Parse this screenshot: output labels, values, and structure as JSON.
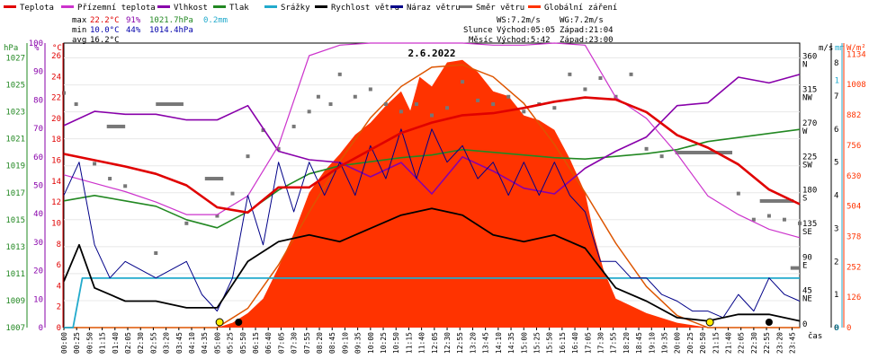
{
  "chart_data": {
    "type": "line",
    "title": "2.6.2022",
    "legend": [
      {
        "label": "Teplota",
        "color": "#e00000"
      },
      {
        "label": "Přízemní teplota",
        "color": "#cc33cc"
      },
      {
        "label": "Vlhkost",
        "color": "#8800aa"
      },
      {
        "label": "Tlak",
        "color": "#228822"
      },
      {
        "label": "Srážky",
        "color": "#22aacc"
      },
      {
        "label": "Rychlost větru",
        "color": "#000000"
      },
      {
        "label": "Náraz větru",
        "color": "#000088"
      },
      {
        "label": "Směr větru",
        "color": "#777777"
      },
      {
        "label": "Globální záření",
        "color": "#ff3300"
      }
    ],
    "stats": {
      "max": {
        "label": "max",
        "temp": "22.2°C",
        "hum": "91%",
        "press": "1021.7hPa",
        "rain": "0.2mm"
      },
      "min": {
        "label": "min",
        "temp": "10.0°C",
        "hum": "44%",
        "press": "1014.4hPa"
      },
      "avg": {
        "label": "avg",
        "temp": "16.2°C"
      }
    },
    "wind_info": {
      "ws": "WS:7.2m/s",
      "wg": "WG:7.2m/s"
    },
    "sun": {
      "label": "Slunce",
      "rise": "Východ:05:05",
      "set": "Západ:21:04"
    },
    "moon": {
      "label": "Měsíc",
      "rise": "Východ:5:42",
      "set": "Západ:23:00"
    },
    "axis_units": {
      "hpa": "hPa",
      "pct": "%",
      "temp": "°C",
      "ms": "m/s",
      "mm": "mm",
      "wm2": "W/m²",
      "time": "čas"
    },
    "left_axes": {
      "hpa": [
        "1027",
        "1025",
        "1023",
        "1021",
        "1019",
        "1017",
        "1015",
        "1013",
        "1011",
        "1009",
        "1007"
      ],
      "pct": [
        "100",
        "90",
        "80",
        "70",
        "60",
        "50",
        "40",
        "30",
        "20",
        "10",
        "0"
      ],
      "temp": [
        "26",
        "24",
        "22",
        "20",
        "18",
        "16",
        "14",
        "12",
        "10",
        "8",
        "6",
        "4",
        "2",
        "0"
      ]
    },
    "right_axes": {
      "dir": [
        [
          "360",
          "N"
        ],
        [
          "315",
          "NW"
        ],
        [
          "270",
          "W"
        ],
        [
          "225",
          "SW"
        ],
        [
          "180",
          "S"
        ],
        [
          "135",
          "SE"
        ],
        [
          "90",
          "E"
        ],
        [
          "45",
          "NE"
        ],
        [
          "0",
          ""
        ]
      ],
      "ms": [
        "8",
        "7",
        "6",
        "5",
        "4",
        "3",
        "2",
        "1",
        "0"
      ],
      "mm": [
        "1",
        "0"
      ],
      "wm2": [
        "1134",
        "1008",
        "882",
        "756",
        "630",
        "504",
        "378",
        "252",
        "126",
        "0"
      ]
    },
    "x_ticks": [
      "00:00",
      "00:25",
      "00:50",
      "01:15",
      "01:40",
      "02:05",
      "02:30",
      "02:55",
      "03:20",
      "03:45",
      "04:10",
      "04:35",
      "05:00",
      "05:25",
      "05:50",
      "06:15",
      "06:40",
      "07:05",
      "07:30",
      "07:55",
      "08:20",
      "08:45",
      "09:10",
      "09:35",
      "10:00",
      "10:25",
      "10:50",
      "11:15",
      "11:40",
      "12:05",
      "12:30",
      "12:55",
      "13:20",
      "13:45",
      "14:10",
      "14:35",
      "15:00",
      "15:25",
      "15:50",
      "16:15",
      "16:40",
      "17:05",
      "17:30",
      "17:55",
      "18:20",
      "18:45",
      "19:10",
      "19:35",
      "20:00",
      "20:25",
      "20:50",
      "21:15",
      "21:40",
      "22:05",
      "22:30",
      "22:55",
      "23:20",
      "23:45"
    ],
    "series": {
      "temperature_c": [
        [
          0,
          16.6
        ],
        [
          1,
          16.0
        ],
        [
          2,
          15.4
        ],
        [
          3,
          14.7
        ],
        [
          4,
          13.6
        ],
        [
          5,
          11.5
        ],
        [
          6,
          11.0
        ],
        [
          7,
          13.4
        ],
        [
          8,
          13.4
        ],
        [
          9,
          15.4
        ],
        [
          10,
          17.0
        ],
        [
          11,
          18.6
        ],
        [
          12,
          19.6
        ],
        [
          13,
          20.3
        ],
        [
          14,
          20.5
        ],
        [
          15,
          21.0
        ],
        [
          16,
          21.6
        ],
        [
          17,
          22.0
        ],
        [
          18,
          21.8
        ],
        [
          19,
          20.6
        ],
        [
          20,
          18.4
        ],
        [
          21,
          17.2
        ],
        [
          22,
          15.6
        ],
        [
          23,
          13.2
        ],
        [
          24,
          11.8
        ]
      ],
      "ground_temp_c": [
        [
          0,
          14.6
        ],
        [
          1,
          13.8
        ],
        [
          2,
          13.0
        ],
        [
          3,
          12.0
        ],
        [
          4,
          10.8
        ],
        [
          5,
          10.8
        ],
        [
          6,
          12.6
        ],
        [
          7,
          17.4
        ],
        [
          8,
          26.0
        ],
        [
          9,
          27.0
        ],
        [
          10,
          27.2
        ],
        [
          11,
          27.2
        ],
        [
          12,
          27.2
        ],
        [
          13,
          27.2
        ],
        [
          14,
          27.0
        ],
        [
          15,
          27.0
        ],
        [
          16,
          27.2
        ],
        [
          17,
          27.0
        ],
        [
          18,
          22.0
        ],
        [
          19,
          20.0
        ],
        [
          20,
          16.6
        ],
        [
          21,
          12.6
        ],
        [
          22,
          10.8
        ],
        [
          23,
          9.4
        ],
        [
          24,
          8.6
        ]
      ],
      "humidity_pct": [
        [
          0,
          71
        ],
        [
          1,
          76
        ],
        [
          2,
          75
        ],
        [
          3,
          75
        ],
        [
          4,
          73
        ],
        [
          5,
          73
        ],
        [
          6,
          78
        ],
        [
          7,
          62
        ],
        [
          8,
          59
        ],
        [
          9,
          58
        ],
        [
          10,
          53
        ],
        [
          11,
          58
        ],
        [
          12,
          47
        ],
        [
          13,
          60
        ],
        [
          14,
          55
        ],
        [
          15,
          49
        ],
        [
          16,
          47
        ],
        [
          17,
          56
        ],
        [
          18,
          62
        ],
        [
          19,
          67
        ],
        [
          20,
          78
        ],
        [
          21,
          79
        ],
        [
          22,
          88
        ],
        [
          23,
          86
        ],
        [
          24,
          89
        ]
      ],
      "pressure_hpa": [
        [
          0,
          1016.4
        ],
        [
          1,
          1016.8
        ],
        [
          2,
          1016.4
        ],
        [
          3,
          1016.0
        ],
        [
          4,
          1015.0
        ],
        [
          5,
          1014.4
        ],
        [
          6,
          1015.6
        ],
        [
          7,
          1017.2
        ],
        [
          8,
          1018.4
        ],
        [
          9,
          1019.0
        ],
        [
          10,
          1019.3
        ],
        [
          11,
          1019.6
        ],
        [
          12,
          1019.8
        ],
        [
          13,
          1020.2
        ],
        [
          14,
          1020.0
        ],
        [
          15,
          1019.8
        ],
        [
          16,
          1019.6
        ],
        [
          17,
          1019.5
        ],
        [
          18,
          1019.7
        ],
        [
          19,
          1019.9
        ],
        [
          20,
          1020.2
        ],
        [
          21,
          1020.8
        ],
        [
          22,
          1021.1
        ],
        [
          23,
          1021.4
        ],
        [
          24,
          1021.7
        ]
      ],
      "rain_mm": [
        [
          0,
          0
        ],
        [
          0.3,
          0
        ],
        [
          0.6,
          0.2
        ],
        [
          24,
          0.2
        ]
      ],
      "wind_speed_ms": [
        [
          0,
          1.4
        ],
        [
          0.5,
          2.5
        ],
        [
          1,
          1.2
        ],
        [
          1.5,
          1.0
        ],
        [
          2,
          0.8
        ],
        [
          3,
          0.8
        ],
        [
          4,
          0.6
        ],
        [
          5,
          0.6
        ],
        [
          6,
          2.0
        ],
        [
          7,
          2.6
        ],
        [
          8,
          2.8
        ],
        [
          9,
          2.6
        ],
        [
          10,
          3.0
        ],
        [
          11,
          3.4
        ],
        [
          12,
          3.6
        ],
        [
          13,
          3.4
        ],
        [
          14,
          2.8
        ],
        [
          15,
          2.6
        ],
        [
          16,
          2.8
        ],
        [
          17,
          2.4
        ],
        [
          18,
          1.2
        ],
        [
          19,
          0.8
        ],
        [
          20,
          0.3
        ],
        [
          21,
          0.2
        ],
        [
          22,
          0.4
        ],
        [
          23,
          0.4
        ],
        [
          24,
          0.2
        ]
      ],
      "wind_gust_ms": [
        [
          0,
          4.0
        ],
        [
          0.5,
          5.0
        ],
        [
          1,
          2.5
        ],
        [
          1.5,
          1.5
        ],
        [
          2,
          2.0
        ],
        [
          3,
          1.5
        ],
        [
          4,
          2.0
        ],
        [
          4.5,
          1.0
        ],
        [
          5,
          0.5
        ],
        [
          5.5,
          1.5
        ],
        [
          6,
          4.0
        ],
        [
          6.5,
          2.5
        ],
        [
          7,
          5.0
        ],
        [
          7.5,
          3.5
        ],
        [
          8,
          5.0
        ],
        [
          8.5,
          4.0
        ],
        [
          9,
          5.0
        ],
        [
          9.5,
          4.0
        ],
        [
          10,
          5.5
        ],
        [
          10.5,
          4.5
        ],
        [
          11,
          6.0
        ],
        [
          11.5,
          4.5
        ],
        [
          12,
          6.0
        ],
        [
          12.5,
          5.0
        ],
        [
          13,
          5.5
        ],
        [
          13.5,
          4.5
        ],
        [
          14,
          5.0
        ],
        [
          14.5,
          4.0
        ],
        [
          15,
          5.0
        ],
        [
          15.5,
          4.0
        ],
        [
          16,
          5.0
        ],
        [
          16.5,
          4.0
        ],
        [
          17,
          3.5
        ],
        [
          17.5,
          2.0
        ],
        [
          18,
          2.0
        ],
        [
          18.5,
          1.5
        ],
        [
          19,
          1.5
        ],
        [
          19.5,
          1.0
        ],
        [
          20,
          0.8
        ],
        [
          20.5,
          0.5
        ],
        [
          21,
          0.5
        ],
        [
          21.5,
          0.3
        ],
        [
          22,
          1.0
        ],
        [
          22.5,
          0.5
        ],
        [
          23,
          1.5
        ],
        [
          23.5,
          1.0
        ],
        [
          24,
          0.8
        ]
      ],
      "wind_dir_deg": [
        [
          0,
          315
        ],
        [
          0.4,
          300
        ],
        [
          1,
          220
        ],
        [
          1.5,
          200
        ],
        [
          2,
          190
        ],
        [
          3,
          100
        ],
        [
          4,
          140
        ],
        [
          5,
          150
        ],
        [
          5.5,
          180
        ],
        [
          6,
          230
        ],
        [
          6.5,
          265
        ],
        [
          7,
          240
        ],
        [
          7.5,
          270
        ],
        [
          8,
          290
        ],
        [
          8.3,
          310
        ],
        [
          8.7,
          300
        ],
        [
          9,
          340
        ],
        [
          9.5,
          310
        ],
        [
          10,
          320
        ],
        [
          10.5,
          300
        ],
        [
          11,
          290
        ],
        [
          11.5,
          300
        ],
        [
          12,
          285
        ],
        [
          12.5,
          295
        ],
        [
          13,
          330
        ],
        [
          13.5,
          305
        ],
        [
          14,
          300
        ],
        [
          14.5,
          310
        ],
        [
          15,
          290
        ],
        [
          15.5,
          300
        ],
        [
          16,
          295
        ],
        [
          16.5,
          340
        ],
        [
          17,
          320
        ],
        [
          17.5,
          335
        ],
        [
          18,
          310
        ],
        [
          18.5,
          340
        ],
        [
          19,
          240
        ],
        [
          19.5,
          230
        ],
        [
          20,
          235
        ],
        [
          21,
          235
        ],
        [
          22,
          180
        ],
        [
          22.5,
          145
        ],
        [
          23,
          150
        ],
        [
          23.5,
          145
        ],
        [
          24,
          140
        ]
      ],
      "radiation_wm2": [
        [
          0,
          0
        ],
        [
          5,
          0
        ],
        [
          5.5,
          20
        ],
        [
          6,
          60
        ],
        [
          6.5,
          120
        ],
        [
          7,
          250
        ],
        [
          7.5,
          390
        ],
        [
          8,
          560
        ],
        [
          8.5,
          650
        ],
        [
          9,
          720
        ],
        [
          9.5,
          800
        ],
        [
          10,
          850
        ],
        [
          10.5,
          920
        ],
        [
          11,
          980
        ],
        [
          11.3,
          900
        ],
        [
          11.6,
          1040
        ],
        [
          12,
          1000
        ],
        [
          12.5,
          1100
        ],
        [
          13,
          1110
        ],
        [
          13.5,
          1060
        ],
        [
          14,
          980
        ],
        [
          14.5,
          960
        ],
        [
          15,
          880
        ],
        [
          15.5,
          860
        ],
        [
          16,
          820
        ],
        [
          16.5,
          700
        ],
        [
          17,
          560
        ],
        [
          17.3,
          380
        ],
        [
          17.6,
          240
        ],
        [
          18,
          120
        ],
        [
          18.5,
          90
        ],
        [
          19,
          60
        ],
        [
          19.5,
          40
        ],
        [
          20,
          20
        ],
        [
          20.5,
          10
        ],
        [
          21,
          0
        ],
        [
          24,
          0
        ]
      ],
      "radiation_clear_wm2": [
        [
          0,
          0
        ],
        [
          5,
          0
        ],
        [
          6,
          80
        ],
        [
          7,
          260
        ],
        [
          8,
          480
        ],
        [
          9,
          690
        ],
        [
          10,
          870
        ],
        [
          11,
          1000
        ],
        [
          12,
          1080
        ],
        [
          13,
          1090
        ],
        [
          14,
          1040
        ],
        [
          15,
          930
        ],
        [
          16,
          760
        ],
        [
          17,
          560
        ],
        [
          18,
          350
        ],
        [
          19,
          170
        ],
        [
          20,
          50
        ],
        [
          21,
          0
        ],
        [
          24,
          0
        ]
      ]
    },
    "wind_dir_bars": [
      [
        1.4,
        2.0,
        270
      ],
      [
        3.0,
        3.9,
        300
      ],
      [
        4.6,
        5.2,
        200
      ],
      [
        20.0,
        21.8,
        235
      ],
      [
        22.7,
        23.8,
        170
      ],
      [
        23.7,
        24.0,
        80
      ]
    ],
    "sun_markers": [
      {
        "t": 5.08,
        "color": "#ffee00"
      },
      {
        "t": 21.07,
        "color": "#ffee00"
      }
    ],
    "moon_markers": [
      {
        "t": 5.7,
        "color": "#000000"
      },
      {
        "t": 23.0,
        "color": "#000000"
      }
    ]
  }
}
